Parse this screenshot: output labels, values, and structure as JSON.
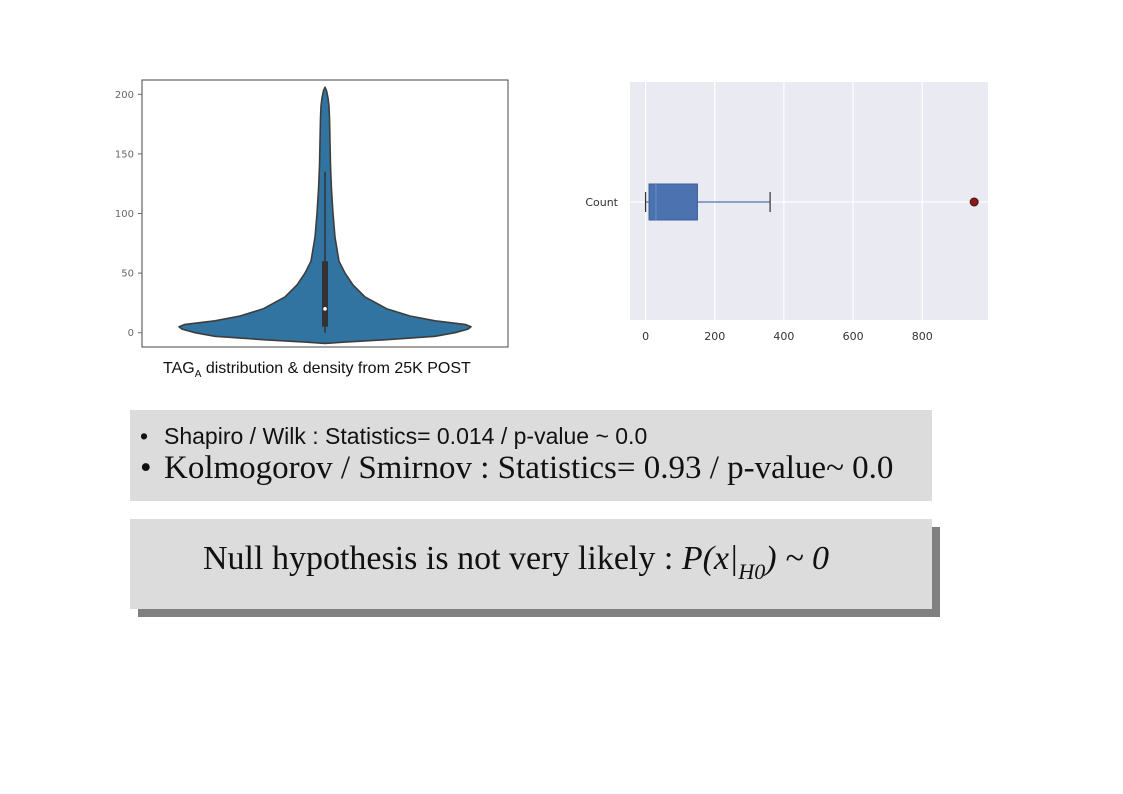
{
  "chart_data": [
    {
      "type": "violin",
      "ylim": [
        -12,
        212
      ],
      "yticks": [
        0,
        50,
        100,
        150,
        200
      ],
      "median": 20,
      "q1": 5,
      "q3": 60,
      "whisker_low": 0,
      "whisker_high": 135,
      "fill_color": "#3274a1",
      "caption_main": "TAG",
      "caption_sub": "A",
      "caption_rest": " distribution & density from 25K POST"
    },
    {
      "type": "box",
      "orientation": "horizontal",
      "category": "Count",
      "xlim": [
        -45,
        990
      ],
      "xticks": [
        0,
        200,
        400,
        600,
        800
      ],
      "whisker_low": 0,
      "q1": 10,
      "median": 30,
      "q3": 150,
      "whisker_high": 360,
      "outliers": [
        950
      ],
      "box_color": "#4c72b0",
      "outlier_color": "#8b1a1a",
      "grid": true
    }
  ],
  "stats": {
    "bullet": "•",
    "shapiro": "Shapiro / Wilk : Statistics= 0.014 / p-value ~ 0.0",
    "kolmogorov": "Kolmogorov / Smirnov  : Statistics= 0.93 / p-value~ 0.0"
  },
  "null_hypothesis": {
    "text": "Null hypothesis is not very likely : ",
    "p_open": "P(x|",
    "sub": "H0",
    "p_close": ")",
    "approx": "  ~ 0"
  }
}
